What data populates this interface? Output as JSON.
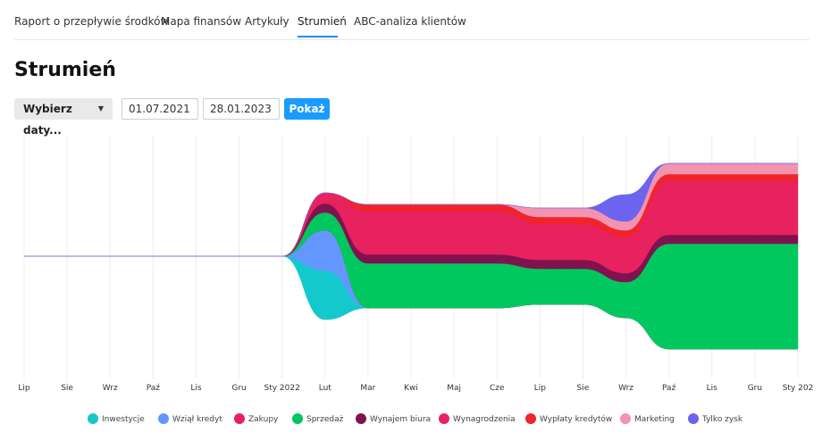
{
  "tabs": [
    {
      "label": "Raport o przepływie środków",
      "active": false
    },
    {
      "label": "Mapa finansów",
      "active": false
    },
    {
      "label": "Artykuły",
      "active": false
    },
    {
      "label": "Strumień",
      "active": true
    },
    {
      "label": "ABC-analiza klientów",
      "active": false
    }
  ],
  "page_title": "Strumień",
  "controls": {
    "dropdown_label": "Wybierz daty...",
    "date_from": "01.07.2021",
    "date_to": "28.01.2023",
    "show_button": "Pokaż"
  },
  "chart_data": {
    "type": "area",
    "stacking": "streamgraph",
    "grid": "vertical",
    "legend_position": "bottom",
    "x_labels": [
      "Lip",
      "Sie",
      "Wrz",
      "Paź",
      "Lis",
      "Gru",
      "Sty 2022",
      "Lut",
      "Mar",
      "Kwi",
      "Maj",
      "Cze",
      "Lip",
      "Sie",
      "Wrz",
      "Paź",
      "Lis",
      "Gru",
      "Sty 202"
    ],
    "series": [
      {
        "name": "Inwestycje",
        "color": "#14c8cc",
        "values": [
          0,
          0,
          0,
          0,
          0,
          0,
          0,
          55,
          0,
          0,
          0,
          0,
          0,
          0,
          0,
          0,
          0,
          0,
          0
        ]
      },
      {
        "name": "Wziął kredyt",
        "color": "#6496ff",
        "values": [
          0,
          0,
          0,
          0,
          0,
          0,
          0,
          45,
          0,
          0,
          0,
          0,
          0,
          0,
          0,
          0,
          0,
          0,
          0
        ]
      },
      {
        "name": "Zakupy",
        "color": "#e8215f",
        "values": [
          0,
          0,
          0,
          0,
          0,
          0,
          0,
          0,
          0,
          0,
          0,
          0,
          0,
          0,
          0,
          0,
          0,
          0,
          0
        ]
      },
      {
        "name": "Sprzedaż",
        "color": "#00c85f",
        "values": [
          0,
          0,
          0,
          0,
          0,
          0,
          0,
          20,
          50,
          50,
          50,
          50,
          40,
          40,
          40,
          118,
          118,
          118,
          118
        ]
      },
      {
        "name": "Wynajem biura",
        "color": "#80124f",
        "values": [
          0,
          0,
          0,
          0,
          0,
          0,
          0,
          10,
          10,
          10,
          10,
          10,
          10,
          10,
          10,
          10,
          10,
          10,
          10
        ]
      },
      {
        "name": "Wynagrodzenia",
        "color": "#e8215f",
        "values": [
          0,
          0,
          0,
          0,
          0,
          0,
          0,
          12,
          48,
          48,
          48,
          48,
          40,
          40,
          40,
          60,
          60,
          60,
          60
        ]
      },
      {
        "name": "Wypłaty kredytów",
        "color": "#f0242c",
        "values": [
          0,
          0,
          0,
          0,
          0,
          0,
          0,
          0,
          8,
          8,
          8,
          8,
          8,
          8,
          8,
          8,
          8,
          8,
          8
        ]
      },
      {
        "name": "Marketing",
        "color": "#f293b0",
        "values": [
          0,
          0,
          0,
          0,
          0,
          0,
          0,
          0,
          0,
          0,
          0,
          0,
          10,
          10,
          10,
          12,
          12,
          12,
          12
        ]
      },
      {
        "name": "Tylko zysk",
        "color": "#6c64ee",
        "values": [
          0,
          0,
          0,
          0,
          0,
          0,
          0,
          0,
          0,
          0,
          0,
          0,
          0,
          0,
          30,
          0,
          0,
          0,
          0
        ]
      }
    ]
  }
}
